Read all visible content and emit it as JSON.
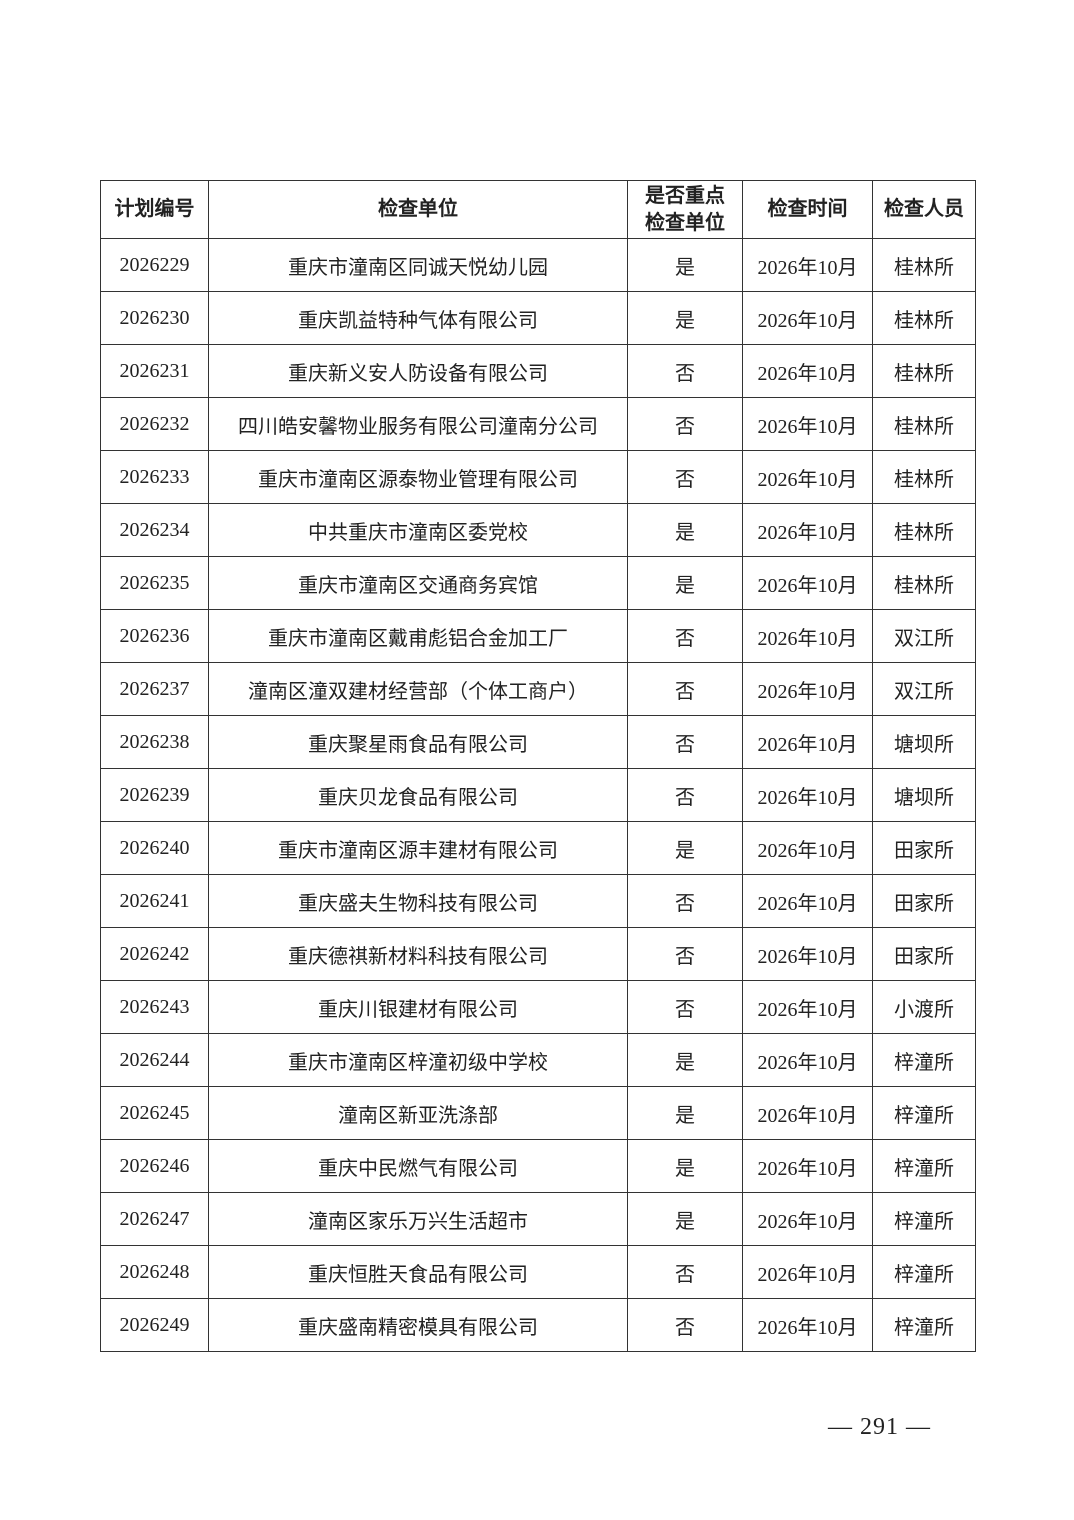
{
  "table": {
    "headers": [
      "计划编号",
      "检查单位",
      "是否重点\n检查单位",
      "检查时间",
      "检查人员"
    ],
    "header_key_line1": "是否重点",
    "header_key_line2": "检查单位",
    "rows": [
      [
        "2026229",
        "重庆市潼南区同诚天悦幼儿园",
        "是",
        "2026年10月",
        "桂林所"
      ],
      [
        "2026230",
        "重庆凯益特种气体有限公司",
        "是",
        "2026年10月",
        "桂林所"
      ],
      [
        "2026231",
        "重庆新义安人防设备有限公司",
        "否",
        "2026年10月",
        "桂林所"
      ],
      [
        "2026232",
        "四川皓安馨物业服务有限公司潼南分公司",
        "否",
        "2026年10月",
        "桂林所"
      ],
      [
        "2026233",
        "重庆市潼南区源泰物业管理有限公司",
        "否",
        "2026年10月",
        "桂林所"
      ],
      [
        "2026234",
        "中共重庆市潼南区委党校",
        "是",
        "2026年10月",
        "桂林所"
      ],
      [
        "2026235",
        "重庆市潼南区交通商务宾馆",
        "是",
        "2026年10月",
        "桂林所"
      ],
      [
        "2026236",
        "重庆市潼南区戴甫彪铝合金加工厂",
        "否",
        "2026年10月",
        "双江所"
      ],
      [
        "2026237",
        "潼南区潼双建材经营部（个体工商户）",
        "否",
        "2026年10月",
        "双江所"
      ],
      [
        "2026238",
        "重庆聚星雨食品有限公司",
        "否",
        "2026年10月",
        "塘坝所"
      ],
      [
        "2026239",
        "重庆贝龙食品有限公司",
        "否",
        "2026年10月",
        "塘坝所"
      ],
      [
        "2026240",
        "重庆市潼南区源丰建材有限公司",
        "是",
        "2026年10月",
        "田家所"
      ],
      [
        "2026241",
        "重庆盛夫生物科技有限公司",
        "否",
        "2026年10月",
        "田家所"
      ],
      [
        "2026242",
        "重庆德祺新材料科技有限公司",
        "否",
        "2026年10月",
        "田家所"
      ],
      [
        "2026243",
        "重庆川银建材有限公司",
        "否",
        "2026年10月",
        "小渡所"
      ],
      [
        "2026244",
        "重庆市潼南区梓潼初级中学校",
        "是",
        "2026年10月",
        "梓潼所"
      ],
      [
        "2026245",
        "潼南区新亚洗涤部",
        "是",
        "2026年10月",
        "梓潼所"
      ],
      [
        "2026246",
        "重庆中民燃气有限公司",
        "是",
        "2026年10月",
        "梓潼所"
      ],
      [
        "2026247",
        "潼南区家乐万兴生活超市",
        "是",
        "2026年10月",
        "梓潼所"
      ],
      [
        "2026248",
        "重庆恒胜天食品有限公司",
        "否",
        "2026年10月",
        "梓潼所"
      ],
      [
        "2026249",
        "重庆盛南精密模具有限公司",
        "否",
        "2026年10月",
        "梓潼所"
      ]
    ]
  },
  "footer": {
    "page_number": "— 291 —"
  }
}
